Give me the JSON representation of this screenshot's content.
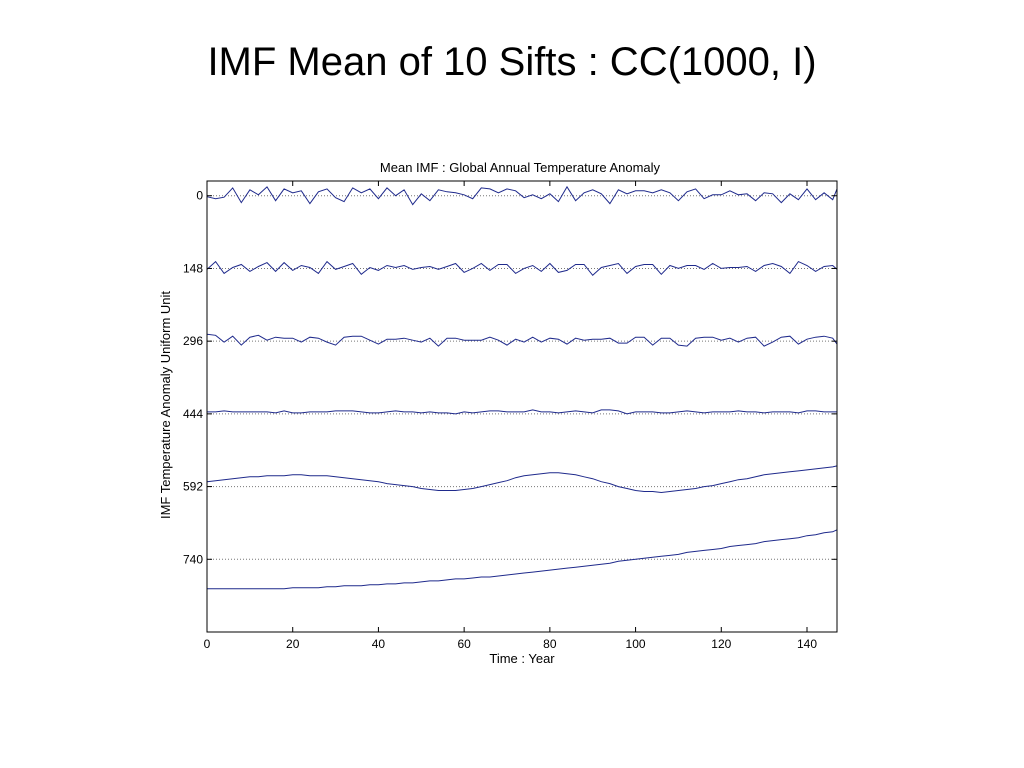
{
  "slide": {
    "title": "IMF Mean of 10 Sifts : CC(1000, I)"
  },
  "chart_data": {
    "type": "line",
    "title": "Mean IMF : Global Annual Temperature Anomaly",
    "xlabel": "Time : Year",
    "ylabel": "IMF Temperature Anomaly Uniform Unit",
    "xlim": [
      0,
      147
    ],
    "ylim": [
      -30,
      888
    ],
    "y_reversed": true,
    "x_ticks": [
      0,
      20,
      40,
      60,
      80,
      100,
      120,
      140
    ],
    "y_ticks": [
      0,
      148,
      296,
      444,
      592,
      740
    ],
    "y_tick_labels": [
      "0",
      "148",
      "296",
      "444",
      "592",
      "740"
    ],
    "baseline_style": "dotted",
    "line_color": "#1f2a8c",
    "baseline_color": "#777777",
    "series": [
      {
        "offset": 0,
        "x_start": 0,
        "x_step": 2,
        "values": [
          -2,
          -6,
          -3,
          16,
          -14,
          12,
          2,
          18,
          -10,
          14,
          6,
          10,
          -16,
          8,
          14,
          -4,
          -12,
          16,
          6,
          14,
          -6,
          16,
          0,
          12,
          -18,
          4,
          -10,
          12,
          8,
          6,
          2,
          -6,
          16,
          14,
          6,
          14,
          10,
          -4,
          2,
          -6,
          4,
          -12,
          18,
          -10,
          6,
          12,
          4,
          -16,
          12,
          4,
          10,
          10,
          6,
          12,
          6,
          -10,
          8,
          14,
          -6,
          2,
          2,
          10,
          2,
          4,
          -10,
          6,
          4,
          -14,
          4,
          -8,
          14,
          -8,
          6,
          -8,
          14
        ]
      },
      {
        "offset": 148,
        "x_start": 0,
        "x_step": 2,
        "values": [
          -2,
          14,
          -10,
          2,
          8,
          -6,
          4,
          12,
          -6,
          12,
          -4,
          6,
          2,
          -10,
          14,
          -2,
          4,
          10,
          -12,
          2,
          -4,
          6,
          2,
          6,
          -2,
          2,
          4,
          -2,
          4,
          10,
          -8,
          0,
          10,
          -4,
          8,
          8,
          -10,
          0,
          6,
          -6,
          10,
          -8,
          -4,
          8,
          8,
          -14,
          2,
          6,
          10,
          -10,
          4,
          8,
          8,
          -12,
          6,
          0,
          6,
          6,
          -2,
          10,
          0,
          2,
          2,
          4,
          -6,
          6,
          10,
          4,
          -10,
          14,
          6,
          -6,
          4,
          6,
          -2
        ]
      },
      {
        "offset": 296,
        "x_start": 0,
        "x_step": 2,
        "values": [
          14,
          12,
          -2,
          10,
          -8,
          8,
          12,
          2,
          8,
          6,
          6,
          -2,
          8,
          6,
          -2,
          -8,
          8,
          10,
          10,
          2,
          -6,
          4,
          4,
          6,
          2,
          -2,
          6,
          -10,
          6,
          6,
          2,
          2,
          2,
          8,
          2,
          -8,
          4,
          -2,
          8,
          -2,
          6,
          4,
          -6,
          6,
          2,
          4,
          4,
          6,
          -4,
          -4,
          8,
          8,
          -8,
          6,
          6,
          -8,
          -10,
          6,
          8,
          8,
          2,
          6,
          -2,
          6,
          8,
          -10,
          -2,
          8,
          10,
          -6,
          4,
          8,
          10,
          6,
          -6
        ]
      },
      {
        "offset": 444,
        "x_start": 0,
        "x_step": 2,
        "values": [
          4,
          4,
          6,
          4,
          4,
          4,
          4,
          4,
          2,
          6,
          2,
          2,
          4,
          4,
          4,
          6,
          6,
          6,
          4,
          2,
          2,
          4,
          6,
          4,
          4,
          2,
          4,
          2,
          2,
          0,
          4,
          2,
          4,
          6,
          6,
          4,
          4,
          4,
          8,
          4,
          4,
          2,
          4,
          6,
          4,
          2,
          8,
          8,
          6,
          0,
          4,
          4,
          4,
          2,
          2,
          4,
          6,
          4,
          2,
          4,
          4,
          4,
          6,
          4,
          4,
          2,
          4,
          4,
          4,
          2,
          6,
          6,
          4,
          4,
          4
        ]
      },
      {
        "offset": 592,
        "x_start": 0,
        "x_step": 2,
        "values": [
          10,
          12,
          14,
          16,
          18,
          20,
          20,
          22,
          22,
          22,
          24,
          24,
          22,
          22,
          22,
          20,
          18,
          16,
          14,
          12,
          10,
          6,
          4,
          2,
          0,
          -4,
          -6,
          -8,
          -8,
          -8,
          -6,
          -4,
          0,
          4,
          8,
          12,
          18,
          22,
          24,
          26,
          28,
          28,
          26,
          24,
          20,
          16,
          10,
          6,
          0,
          -4,
          -8,
          -10,
          -10,
          -12,
          -10,
          -8,
          -6,
          -4,
          0,
          2,
          6,
          10,
          14,
          16,
          20,
          24,
          26,
          28,
          30,
          32,
          34,
          36,
          38,
          40,
          42
        ]
      },
      {
        "offset": 740,
        "x_start": 0,
        "x_step": 2,
        "values": [
          -60,
          -60,
          -60,
          -60,
          -60,
          -60,
          -60,
          -60,
          -60,
          -60,
          -58,
          -58,
          -58,
          -58,
          -56,
          -56,
          -54,
          -54,
          -54,
          -52,
          -52,
          -50,
          -50,
          -48,
          -48,
          -46,
          -44,
          -44,
          -42,
          -40,
          -40,
          -38,
          -36,
          -36,
          -34,
          -32,
          -30,
          -28,
          -26,
          -24,
          -22,
          -20,
          -18,
          -16,
          -14,
          -12,
          -10,
          -8,
          -4,
          -2,
          0,
          2,
          4,
          6,
          8,
          10,
          14,
          16,
          18,
          20,
          22,
          26,
          28,
          30,
          32,
          36,
          38,
          40,
          42,
          44,
          48,
          50,
          54,
          56,
          60
        ]
      }
    ]
  }
}
